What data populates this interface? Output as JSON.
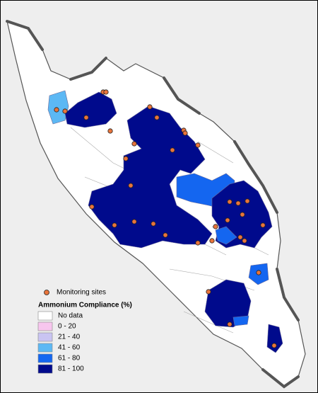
{
  "legend": {
    "sites_label": "Monitoring sites",
    "site_color": "#e8743b",
    "title": "Ammonium Compliance (%)",
    "classes": [
      {
        "label": "No data",
        "color": "#ffffff"
      },
      {
        "label": "0 - 20",
        "color": "#f7c6ee"
      },
      {
        "label": "21 - 40",
        "color": "#c9c4f2"
      },
      {
        "label": "41 - 60",
        "color": "#5cb8f4"
      },
      {
        "label": "61 - 80",
        "color": "#1466f0"
      },
      {
        "label": "81 - 100",
        "color": "#000a8c"
      }
    ]
  }
}
